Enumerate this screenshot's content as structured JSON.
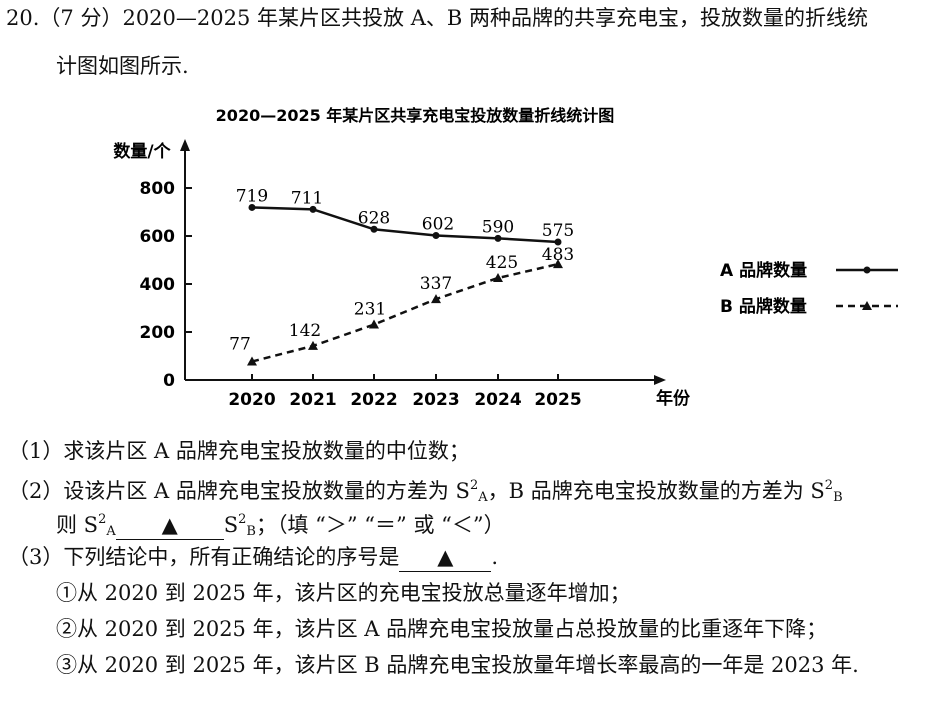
{
  "question": {
    "number": "20.",
    "score": "（7 分）",
    "stem_line1": "2020—2025 年某片区共投放 A、B 两种品牌的共享充电宝，投放数量的折线统",
    "stem_line2": "计图如图所示."
  },
  "chart_data": {
    "type": "line",
    "title": "2020—2025 年某片区共享充电宝投放数量折线统计图",
    "ylabel": "数量/个",
    "xlabel": "年份",
    "categories": [
      "2020",
      "2021",
      "2022",
      "2023",
      "2024",
      "2025"
    ],
    "y_ticks": [
      "0",
      "200",
      "400",
      "600",
      "800"
    ],
    "ylim": [
      0,
      900
    ],
    "legend_position": "right",
    "series": [
      {
        "name": "A 品牌数量",
        "values": [
          719,
          711,
          628,
          602,
          590,
          575
        ],
        "style": "solid",
        "marker": "dot",
        "color": "#111111"
      },
      {
        "name": "B 品牌数量",
        "values": [
          77,
          142,
          231,
          337,
          425,
          483
        ],
        "style": "dashed",
        "marker": "triangle",
        "color": "#111111"
      }
    ]
  },
  "parts": {
    "q1": "（1）求该片区 A 品牌充电宝投放数量的中位数；",
    "q2_a": "（2）设该片区 A 品牌充电宝投放数量的方差为 S",
    "q2_b": "，B 品牌充电宝投放数量的方差为 S",
    "q2_c": "则 S",
    "q2_d": "S",
    "q2_e": "；（填 “＞” “＝” 或 “＜”）",
    "sup2": "2",
    "subA": "A",
    "subB": "B",
    "blank_mark": "▲",
    "q3": "（3）下列结论中，所有正确结论的序号是",
    "q3_end": ".",
    "c1": "①从 2020 到 2025 年，该片区的充电宝投放总量逐年增加；",
    "c2": "②从 2020 到 2025 年，该片区 A 品牌充电宝投放量占总投放量的比重逐年下降；",
    "c3": "③从 2020 到 2025 年，该片区 B 品牌充电宝投放量年增长率最高的一年是 2023 年."
  }
}
